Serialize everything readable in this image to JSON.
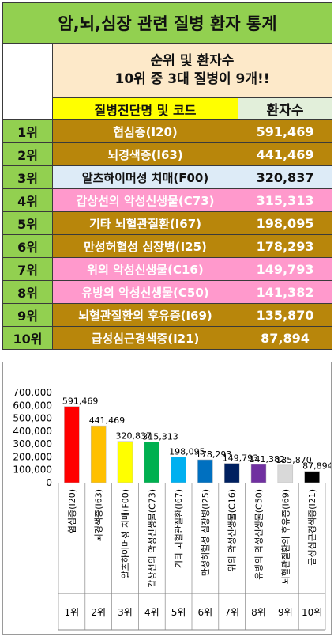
{
  "table": {
    "title": "암,뇌,심장 관련 질병 환자 통계",
    "subtitle_line1": "순위 및 환자수",
    "subtitle_line2": "10위 중 3대 질병이 9개!!",
    "col_name_header": "질병진단명 및 코드",
    "col_count_header": "환자수",
    "rows": [
      {
        "rank": "1위",
        "name": "협심증(I20)",
        "count": "591,469",
        "bg": "#b8860b",
        "fg": "#ffffff"
      },
      {
        "rank": "2위",
        "name": "뇌경색증(I63)",
        "count": "441,469",
        "bg": "#b8860b",
        "fg": "#ffffff"
      },
      {
        "rank": "3위",
        "name": "알츠하이머성 치매(F00)",
        "count": "320,837",
        "bg": "#ddebf7",
        "fg": "#111111"
      },
      {
        "rank": "4위",
        "name": "갑상선의 악성신생물(C73)",
        "count": "315,313",
        "bg": "#ff99cc",
        "fg": "#ffffff"
      },
      {
        "rank": "5위",
        "name": "기타 뇌혈관질환(I67)",
        "count": "198,095",
        "bg": "#b8860b",
        "fg": "#ffffff"
      },
      {
        "rank": "6위",
        "name": "만성허혈성 심장병(I25)",
        "count": "178,293",
        "bg": "#b8860b",
        "fg": "#ffffff"
      },
      {
        "rank": "7위",
        "name": "위의 악성신생물(C16)",
        "count": "149,793",
        "bg": "#ff99cc",
        "fg": "#ffffff"
      },
      {
        "rank": "8위",
        "name": "유방의 악성신생물(C50)",
        "count": "141,382",
        "bg": "#ff99cc",
        "fg": "#ffffff"
      },
      {
        "rank": "9위",
        "name": "뇌혈관질환의 후유증(I69)",
        "count": "135,870",
        "bg": "#b8860b",
        "fg": "#ffffff"
      },
      {
        "rank": "10위",
        "name": "급성심근경색증(I21)",
        "count": "87,894",
        "bg": "#b8860b",
        "fg": "#ffffff"
      }
    ]
  },
  "chart_data": {
    "type": "bar",
    "categories": [
      "협심증(I20)",
      "뇌경색증(I63)",
      "알츠하이머성 치매(F00)",
      "갑상선의 악성신생물(C73)",
      "기타 뇌혈관질환(I67)",
      "만성허혈성 심장병(I25)",
      "위의 악성신생물(C16)",
      "유방의 악성신생물(C50)",
      "뇌혈관질환의 후유증(I69)",
      "급성심근경색증(I21)"
    ],
    "ranks": [
      "1위",
      "2위",
      "3위",
      "4위",
      "5위",
      "6위",
      "7위",
      "8위",
      "9위",
      "10위"
    ],
    "values": [
      591469,
      441469,
      320837,
      315313,
      198095,
      178293,
      149793,
      141382,
      135870,
      87894
    ],
    "data_labels": [
      "591,469",
      "441,469",
      "320,837",
      "315,313",
      "198,095",
      "178,293",
      "149,793",
      "141,382",
      "135,870",
      "87,894"
    ],
    "colors": [
      "#ff0000",
      "#ffc000",
      "#ffff00",
      "#00b050",
      "#00b0f0",
      "#0070c0",
      "#002060",
      "#7030a0",
      "#d9d9d9",
      "#000000"
    ],
    "ylim": [
      0,
      700000
    ],
    "yticks": [
      0,
      100000,
      200000,
      300000,
      400000,
      500000,
      600000,
      700000
    ],
    "ytick_labels": [
      "0",
      "100,000",
      "200,000",
      "300,000",
      "400,000",
      "500,000",
      "600,000",
      "700,000"
    ],
    "grid": false,
    "legend": "none",
    "title": "",
    "xlabel": "",
    "ylabel": ""
  }
}
